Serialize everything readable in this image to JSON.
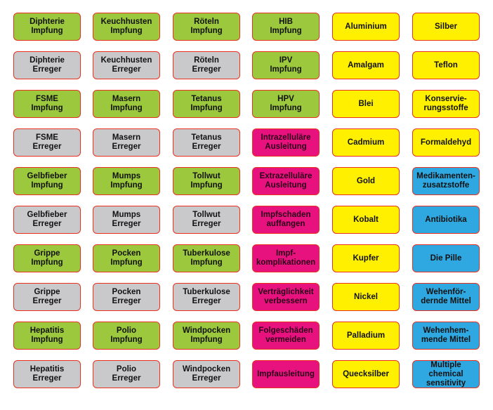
{
  "colors": {
    "green": "#9bc83c",
    "gray": "#c9c9cb",
    "pink": "#e8127f",
    "yellow": "#fff000",
    "blue": "#2fa7e0",
    "border": "#e8311f"
  },
  "rows": [
    [
      {
        "text": "Diphterie\nImpfung",
        "color": "green"
      },
      {
        "text": "Keuchhusten\nImpfung",
        "color": "green"
      },
      {
        "text": "Röteln\nImpfung",
        "color": "green"
      },
      {
        "text": "HIB\nImpfung",
        "color": "green"
      },
      {
        "text": "Aluminium",
        "color": "yellow"
      },
      {
        "text": "Silber",
        "color": "yellow"
      }
    ],
    [
      {
        "text": "Diphterie\nErreger",
        "color": "gray"
      },
      {
        "text": "Keuchhusten\nErreger",
        "color": "gray"
      },
      {
        "text": "Röteln\nErreger",
        "color": "gray"
      },
      {
        "text": "IPV\nImpfung",
        "color": "green"
      },
      {
        "text": "Amalgam",
        "color": "yellow"
      },
      {
        "text": "Teflon",
        "color": "yellow"
      }
    ],
    [
      {
        "text": "FSME\nImpfung",
        "color": "green"
      },
      {
        "text": "Masern\nImpfung",
        "color": "green"
      },
      {
        "text": "Tetanus\nImpfung",
        "color": "green"
      },
      {
        "text": "HPV\nImpfung",
        "color": "green"
      },
      {
        "text": "Blei",
        "color": "yellow"
      },
      {
        "text": "Konservie-\nrungsstoffe",
        "color": "yellow"
      }
    ],
    [
      {
        "text": "FSME\nErreger",
        "color": "gray"
      },
      {
        "text": "Masern\nErreger",
        "color": "gray"
      },
      {
        "text": "Tetanus\nErreger",
        "color": "gray"
      },
      {
        "text": "Intrazelluläre\nAusleitung",
        "color": "pink"
      },
      {
        "text": "Cadmium",
        "color": "yellow"
      },
      {
        "text": "Formaldehyd",
        "color": "yellow"
      }
    ],
    [
      {
        "text": "Gelbfieber\nImpfung",
        "color": "green"
      },
      {
        "text": "Mumps\nImpfung",
        "color": "green"
      },
      {
        "text": "Tollwut\nImpfung",
        "color": "green"
      },
      {
        "text": "Extrazelluläre\nAusleitung",
        "color": "pink"
      },
      {
        "text": "Gold",
        "color": "yellow"
      },
      {
        "text": "Medikamenten-\nzusatzstoffe",
        "color": "blue"
      }
    ],
    [
      {
        "text": "Gelbfieber\nErreger",
        "color": "gray"
      },
      {
        "text": "Mumps\nErreger",
        "color": "gray"
      },
      {
        "text": "Tollwut\nErreger",
        "color": "gray"
      },
      {
        "text": "Impfschaden\nauffangen",
        "color": "pink"
      },
      {
        "text": "Kobalt",
        "color": "yellow"
      },
      {
        "text": "Antibiotika",
        "color": "blue"
      }
    ],
    [
      {
        "text": "Grippe\nImpfung",
        "color": "green"
      },
      {
        "text": "Pocken\nImpfung",
        "color": "green"
      },
      {
        "text": "Tuberkulose\nImpfung",
        "color": "green"
      },
      {
        "text": "Impf-\nkomplikationen",
        "color": "pink"
      },
      {
        "text": "Kupfer",
        "color": "yellow"
      },
      {
        "text": "Die Pille",
        "color": "blue"
      }
    ],
    [
      {
        "text": "Grippe\nErreger",
        "color": "gray"
      },
      {
        "text": "Pocken\nErreger",
        "color": "gray"
      },
      {
        "text": "Tuberkulose\nErreger",
        "color": "gray"
      },
      {
        "text": "Verträglichkeit\nverbessern",
        "color": "pink"
      },
      {
        "text": "Nickel",
        "color": "yellow"
      },
      {
        "text": "Wehenför-\ndernde Mittel",
        "color": "blue"
      }
    ],
    [
      {
        "text": "Hepatitis\nImpfung",
        "color": "green"
      },
      {
        "text": "Polio\nImpfung",
        "color": "green"
      },
      {
        "text": "Windpocken\nImpfung",
        "color": "green"
      },
      {
        "text": "Folgeschäden\nvermeiden",
        "color": "pink"
      },
      {
        "text": "Palladium",
        "color": "yellow"
      },
      {
        "text": "Wehenhem-\nmende Mittel",
        "color": "blue"
      }
    ],
    [
      {
        "text": "Hepatitis\nErreger",
        "color": "gray"
      },
      {
        "text": "Polio\nErreger",
        "color": "gray"
      },
      {
        "text": "Windpocken\nErreger",
        "color": "gray"
      },
      {
        "text": "Impfausleitung",
        "color": "pink"
      },
      {
        "text": "Quecksilber",
        "color": "yellow"
      },
      {
        "text": "Multiple chemical\nsensitivity",
        "color": "blue"
      }
    ]
  ]
}
